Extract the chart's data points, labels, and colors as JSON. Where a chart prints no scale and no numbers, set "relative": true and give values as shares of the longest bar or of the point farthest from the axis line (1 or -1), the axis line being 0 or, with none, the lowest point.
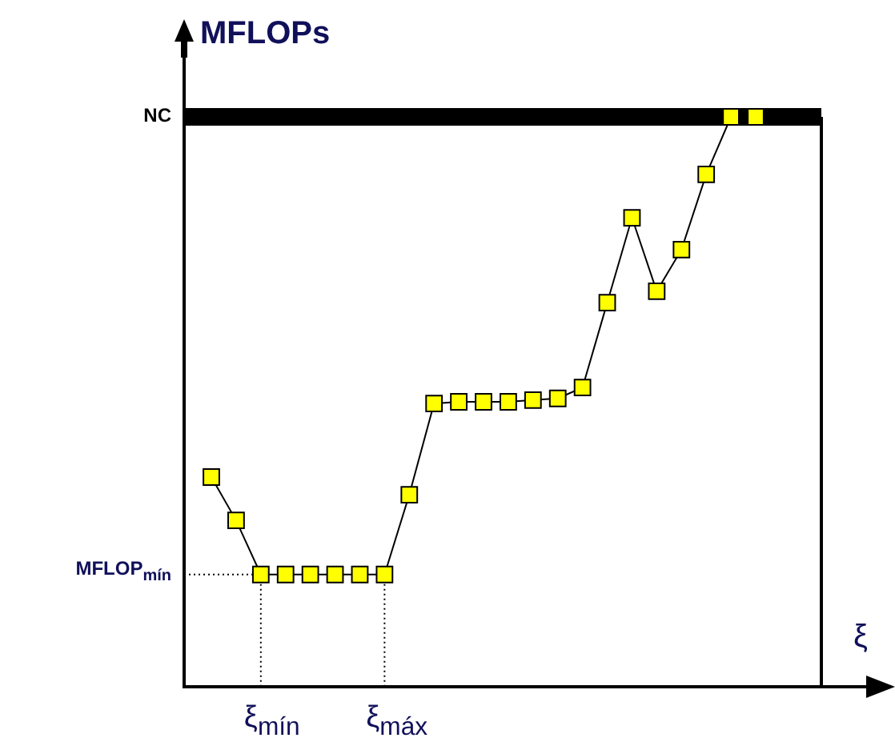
{
  "chart_data": {
    "type": "line",
    "relative": true,
    "ylabel": "MFLOPs",
    "xlabel": "ξ",
    "marker": "square",
    "categories": [
      null,
      null,
      null,
      null,
      null,
      null,
      null,
      null,
      null,
      null,
      null,
      null,
      null,
      null,
      null,
      null,
      null,
      null,
      null,
      null,
      null,
      null,
      null
    ],
    "series": [
      {
        "color": "#000000",
        "colors": [
          "#ffff00",
          "#ffff00",
          "#ffff00",
          "#ffff00",
          "#ffff00",
          "#ffff00",
          "#ffff00",
          "#ffff00",
          "#ffff00",
          "#ffff00",
          "#ffff00",
          "#ffff00",
          "#ffff00",
          "#ffff00",
          "#ffff00",
          "#ffff00",
          "#ffff00",
          "#ffff00",
          "#ffff00",
          "#ffff00",
          "#ffff00",
          "#ffff00",
          "#ffff00"
        ],
        "values": [
          0.368,
          0.292,
          0.197,
          0.197,
          0.197,
          0.197,
          0.197,
          0.197,
          0.337,
          0.497,
          0.5,
          0.5,
          0.5,
          0.503,
          0.506,
          0.525,
          0.674,
          0.823,
          0.694,
          0.767,
          0.899,
          1,
          1
        ]
      }
    ],
    "ref_lines": [
      {
        "axis": "y",
        "value": 1,
        "label": "NC",
        "color": "#000000"
      },
      {
        "axis": "y",
        "value": 0.197,
        "label": "MFLOP$_{mín}$",
        "color": "#000000",
        "line_style": "dotted"
      }
    ],
    "annotations": [
      "ξ$_{mín}$",
      "ξ$_{máx}$"
    ]
  }
}
